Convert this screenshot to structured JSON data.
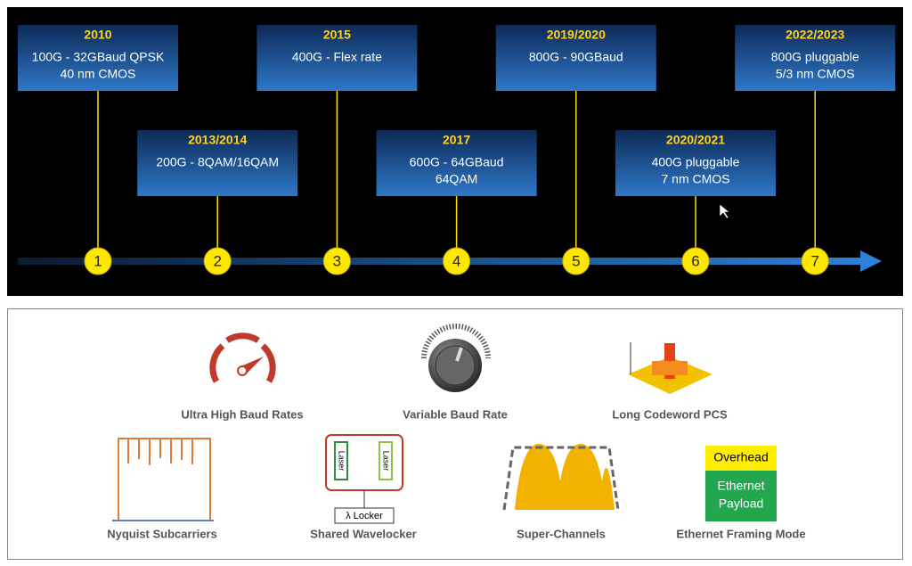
{
  "timeline": {
    "milestones": [
      {
        "year": "2010",
        "lines": [
          "100G - 32GBaud QPSK",
          "40 nm CMOS"
        ],
        "number": "1"
      },
      {
        "year": "2013/2014",
        "lines": [
          "200G - 8QAM/16QAM"
        ],
        "number": "2"
      },
      {
        "year": "2015",
        "lines": [
          "400G - Flex rate"
        ],
        "number": "3"
      },
      {
        "year": "2017",
        "lines": [
          "600G - 64GBaud",
          "64QAM"
        ],
        "number": "4"
      },
      {
        "year": "2019/2020",
        "lines": [
          "800G - 90GBaud"
        ],
        "number": "5"
      },
      {
        "year": "2020/2021",
        "lines": [
          "400G pluggable",
          "7 nm CMOS"
        ],
        "number": "6"
      },
      {
        "year": "2022/2023",
        "lines": [
          "800G pluggable",
          "5/3 nm CMOS"
        ],
        "number": "7"
      }
    ]
  },
  "features": {
    "items": [
      {
        "label": "Ultra High Baud Rates"
      },
      {
        "label": "Variable Baud Rate"
      },
      {
        "label": "Long Codeword PCS"
      },
      {
        "label": "Nyquist Subcarriers"
      },
      {
        "label": "Shared Wavelocker",
        "laser_left": "Laser",
        "laser_right": "Laser",
        "locker": "λ Locker"
      },
      {
        "label": "Super-Channels"
      },
      {
        "label": "Ethernet Framing Mode",
        "overhead": "Overhead",
        "payload": [
          "Ethernet",
          "Payload"
        ]
      }
    ]
  }
}
